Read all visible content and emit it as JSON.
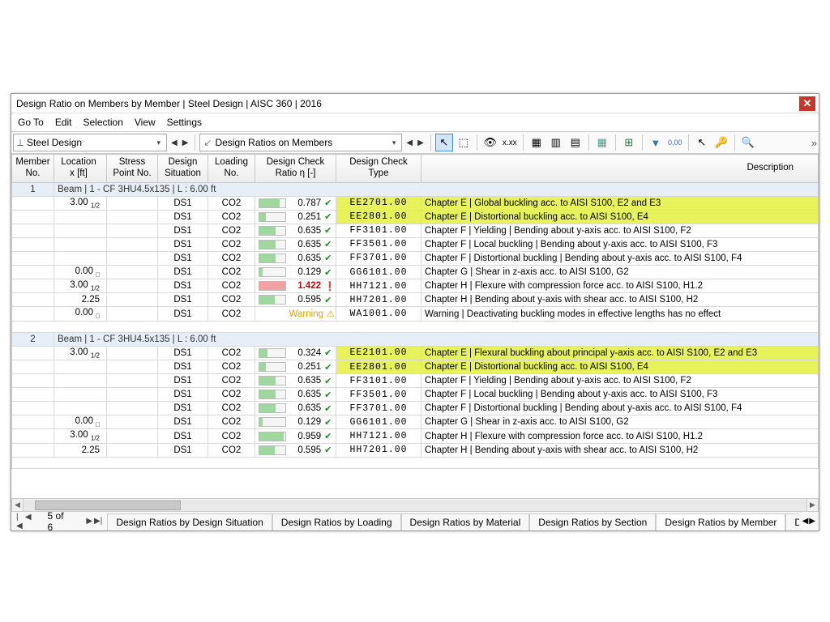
{
  "title": "Design Ratio on Members by Member | Steel Design | AISC 360 | 2016",
  "menu": [
    "Go To",
    "Edit",
    "Selection",
    "View",
    "Settings"
  ],
  "combo1": "Steel Design",
  "combo2": "Design Ratios on Members",
  "columns": {
    "member": "Member\nNo.",
    "location": "Location\nx [ft]",
    "stress": "Stress\nPoint No.",
    "situation": "Design\nSituation",
    "loading": "Loading\nNo.",
    "ratio": "Design Check\nRatio η [-]",
    "type": "Design Check\nType",
    "desc": "Description"
  },
  "groups": [
    {
      "member": "1",
      "header": "Beam | 1 - CF 3HU4.5x135 | L : 6.00 ft",
      "rows": [
        {
          "loc": "3.00",
          "locSub": "1/2",
          "sit": "DS1",
          "load": "CO2",
          "ratio": 0.787,
          "mark": "ok",
          "type": "EE2701.00",
          "desc": "Chapter E | Global buckling acc. to AISI S100, E2 and E3",
          "hl": true
        },
        {
          "loc": "",
          "sit": "DS1",
          "load": "CO2",
          "ratio": 0.251,
          "mark": "ok",
          "type": "EE2801.00",
          "desc": "Chapter E | Distortional buckling acc. to AISI S100, E4",
          "hl": true
        },
        {
          "loc": "",
          "sit": "DS1",
          "load": "CO2",
          "ratio": 0.635,
          "mark": "ok",
          "type": "FF3101.00",
          "desc": "Chapter F | Yielding | Bending about y-axis acc. to AISI S100, F2"
        },
        {
          "loc": "",
          "sit": "DS1",
          "load": "CO2",
          "ratio": 0.635,
          "mark": "ok",
          "type": "FF3501.00",
          "desc": "Chapter F | Local buckling | Bending about y-axis acc. to AISI S100, F3"
        },
        {
          "loc": "",
          "sit": "DS1",
          "load": "CO2",
          "ratio": 0.635,
          "mark": "ok",
          "type": "FF3701.00",
          "desc": "Chapter F | Distortional buckling | Bending about y-axis acc. to AISI S100, F4"
        },
        {
          "loc": "0.00",
          "locSub": "□",
          "sit": "DS1",
          "load": "CO2",
          "ratio": 0.129,
          "mark": "ok",
          "type": "GG6101.00",
          "desc": "Chapter G | Shear in z-axis acc. to AISI S100, G2"
        },
        {
          "loc": "3.00",
          "locSub": "1/2",
          "sit": "DS1",
          "load": "CO2",
          "ratio": 1.422,
          "mark": "bad",
          "type": "HH7121.00",
          "desc": "Chapter H | Flexure with compression force acc. to AISI S100, H1.2"
        },
        {
          "loc": "2.25",
          "sit": "DS1",
          "load": "CO2",
          "ratio": 0.595,
          "mark": "ok",
          "type": "HH7201.00",
          "desc": "Chapter H | Bending about y-axis with shear acc. to AISI S100, H2"
        },
        {
          "loc": "0.00",
          "locSub": "□",
          "sit": "DS1",
          "load": "CO2",
          "ratio": null,
          "mark": "warn",
          "warnText": "Warning",
          "type": "WA1001.00",
          "desc": "Warning | Deactivating buckling modes in effective lengths has no effect"
        }
      ]
    },
    {
      "member": "2",
      "header": "Beam | 1 - CF 3HU4.5x135 | L : 6.00 ft",
      "rows": [
        {
          "loc": "3.00",
          "locSub": "1/2",
          "sit": "DS1",
          "load": "CO2",
          "ratio": 0.324,
          "mark": "ok",
          "type": "EE2101.00",
          "desc": "Chapter E | Flexural buckling about principal y-axis acc. to AISI S100, E2 and E3",
          "hl": true
        },
        {
          "loc": "",
          "sit": "DS1",
          "load": "CO2",
          "ratio": 0.251,
          "mark": "ok",
          "type": "EE2801.00",
          "desc": "Chapter E | Distortional buckling acc. to AISI S100, E4",
          "hl": true
        },
        {
          "loc": "",
          "sit": "DS1",
          "load": "CO2",
          "ratio": 0.635,
          "mark": "ok",
          "type": "FF3101.00",
          "desc": "Chapter F | Yielding | Bending about y-axis acc. to AISI S100, F2"
        },
        {
          "loc": "",
          "sit": "DS1",
          "load": "CO2",
          "ratio": 0.635,
          "mark": "ok",
          "type": "FF3501.00",
          "desc": "Chapter F | Local buckling | Bending about y-axis acc. to AISI S100, F3"
        },
        {
          "loc": "",
          "sit": "DS1",
          "load": "CO2",
          "ratio": 0.635,
          "mark": "ok",
          "type": "FF3701.00",
          "desc": "Chapter F | Distortional buckling | Bending about y-axis acc. to AISI S100, F4"
        },
        {
          "loc": "0.00",
          "locSub": "□",
          "sit": "DS1",
          "load": "CO2",
          "ratio": 0.129,
          "mark": "ok",
          "type": "GG6101.00",
          "desc": "Chapter G | Shear in z-axis acc. to AISI S100, G2"
        },
        {
          "loc": "3.00",
          "locSub": "1/2",
          "sit": "DS1",
          "load": "CO2",
          "ratio": 0.959,
          "mark": "ok",
          "type": "HH7121.00",
          "desc": "Chapter H | Flexure with compression force acc. to AISI S100, H1.2"
        },
        {
          "loc": "2.25",
          "sit": "DS1",
          "load": "CO2",
          "ratio": 0.595,
          "mark": "ok",
          "type": "HH7201.00",
          "desc": "Chapter H | Bending about y-axis with shear acc. to AISI S100, H2"
        }
      ]
    }
  ],
  "pageInfo": "5 of 6",
  "tabs": [
    "Design Ratios by Design Situation",
    "Design Ratios by Loading",
    "Design Ratios by Material",
    "Design Ratios by Section",
    "Design Ratios by Member",
    "Design Rati"
  ],
  "activeTab": 4,
  "colors": {
    "highlight": "#e8f35c",
    "okBar": "#9fd89f",
    "overBar": "#f3a0a0",
    "okMark": "#1a8f1a",
    "badMark": "#c00",
    "warnMark": "#d9a300"
  }
}
